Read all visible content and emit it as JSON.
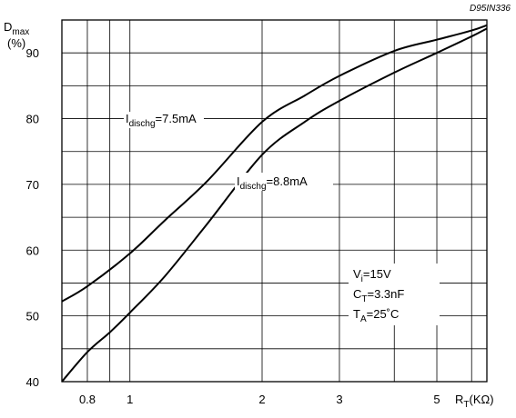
{
  "chart_data": {
    "type": "line",
    "code": "D95IN336",
    "y_axis": {
      "label_main": "D",
      "label_sub": "max",
      "label_unit": "(%)",
      "min": 40,
      "max": 95,
      "ticks": [
        40,
        50,
        60,
        70,
        80,
        90
      ],
      "tick_labels": [
        "40",
        "50",
        "60",
        "70",
        "80",
        "90"
      ],
      "scale": "linear"
    },
    "x_axis": {
      "label_main": "R",
      "label_sub": "T",
      "label_unit": "(KΩ)",
      "min": 0.7,
      "max": 6.5,
      "scale": "log",
      "ticks": [
        0.8,
        1,
        2,
        3,
        5
      ],
      "tick_labels": [
        "0.8",
        "1",
        "2",
        "3",
        "5"
      ],
      "gridlines": [
        0.8,
        0.9,
        1,
        2,
        3,
        4,
        5,
        6
      ]
    },
    "grid": true,
    "series": [
      {
        "name": "I_dischg=7.5mA",
        "x": [
          0.7,
          0.8,
          1,
          1.2,
          1.5,
          2,
          2.5,
          3,
          4,
          5,
          6,
          6.5
        ],
        "y": [
          52.2,
          54.5,
          59.5,
          64.5,
          70.5,
          79.5,
          83.5,
          86.5,
          90.3,
          92,
          93.4,
          94.2
        ]
      },
      {
        "name": "I_dischg=8.8mA",
        "x": [
          0.7,
          0.8,
          0.9,
          1,
          1.2,
          1.5,
          2,
          2.5,
          3,
          4,
          5,
          6,
          6.5
        ],
        "y": [
          40,
          44.5,
          47.5,
          50.5,
          56,
          64,
          74.5,
          79.5,
          82.7,
          87,
          90,
          92.5,
          93.7
        ]
      }
    ],
    "annotations": {
      "series_label_1": {
        "prefix": "I",
        "sub": "dischg",
        "value": "=7.5mA"
      },
      "series_label_2": {
        "prefix": "I",
        "sub": "dischg",
        "value": "=8.8mA"
      },
      "conditions": [
        {
          "main": "V",
          "sub": "i",
          "value": "=15V"
        },
        {
          "main": "C",
          "sub": "T",
          "value": "=3.3nF"
        },
        {
          "main": "T",
          "sub": "A",
          "value": "=25˚C"
        }
      ]
    }
  }
}
